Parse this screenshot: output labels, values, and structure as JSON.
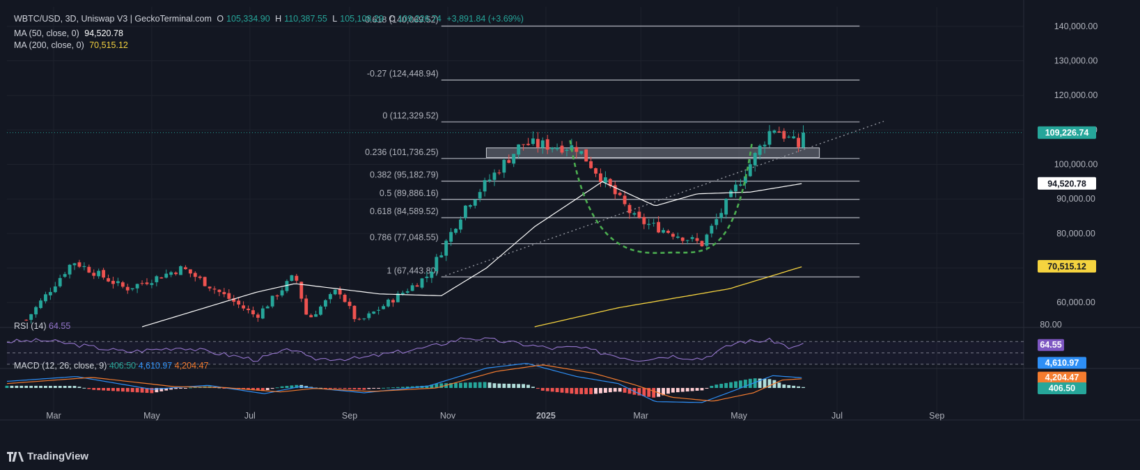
{
  "header": {
    "symbol": "WBTC/USD, 3D, Uniswap V3 | GeckoTerminal.com",
    "open_label": "O",
    "open": "105,334.90",
    "high_label": "H",
    "high": "110,387.55",
    "low_label": "L",
    "low": "105,108.29",
    "close_label": "C",
    "close": "109,226.74",
    "change": "+3,891.84 (+3.69%)",
    "ma50_label": "MA (50, close, 0)",
    "ma50_value": "94,520.78",
    "ma200_label": "MA (200, close, 0)",
    "ma200_value": "70,515.12"
  },
  "rsi_legend": {
    "label": "RSI (14)",
    "value": "64.55"
  },
  "macd_legend": {
    "label": "MACD (12, 26, close, 9)",
    "hist": "406.50",
    "macd": "4,610.97",
    "signal": "4,204.47"
  },
  "brand": "TradingView",
  "colors": {
    "background": "#131722",
    "up": "#26a69a",
    "down": "#ef5350",
    "ma50": "#ffffff",
    "ma200": "#f5d33f",
    "rsi": "#9575cd",
    "macd": "#2e8ff6",
    "signal": "#f57c2f",
    "fib": "#b2b5be",
    "pattern": "#4caf50"
  },
  "chart_data": [
    {
      "type": "candlestick",
      "title": "WBTC/USD, 3D, Uniswap V3 | GeckoTerminal.com",
      "y_ticks": [
        60000,
        70000,
        80000,
        90000,
        100000,
        110000,
        120000,
        130000,
        140000
      ],
      "ylim": [
        53000,
        144000
      ],
      "x_ticks": [
        "Mar",
        "May",
        "Jul",
        "Sep",
        "Nov",
        "2025",
        "Mar",
        "May",
        "Jul",
        "Sep"
      ],
      "x_tick_dates": [
        "2024-03-01",
        "2024-05-01",
        "2024-07-01",
        "2024-09-01",
        "2024-11-01",
        "2025-01-01",
        "2025-03-01",
        "2025-05-01",
        "2025-07-01",
        "2025-09-01"
      ],
      "xlim": [
        "2024-02-01",
        "2025-10-25"
      ],
      "price_anchors": [
        [
          "2024-02-13",
          55000
        ],
        [
          "2024-03-13",
          72000
        ],
        [
          "2024-04-15",
          64000
        ],
        [
          "2024-05-20",
          70000
        ],
        [
          "2024-07-05",
          56000
        ],
        [
          "2024-07-29",
          68000
        ],
        [
          "2024-08-06",
          55000
        ],
        [
          "2024-08-25",
          64000
        ],
        [
          "2024-09-06",
          54000
        ],
        [
          "2024-10-20",
          68000
        ],
        [
          "2024-11-12",
          88000
        ],
        [
          "2024-12-17",
          106000
        ],
        [
          "2025-01-20",
          105000
        ],
        [
          "2025-02-26",
          84000
        ],
        [
          "2025-04-08",
          77000
        ],
        [
          "2025-05-22",
          111000
        ],
        [
          "2025-06-07",
          105300
        ],
        [
          "2025-06-10",
          109226.74
        ]
      ],
      "last_price": 109226.74,
      "fib_levels": [
        {
          "label": "-0.618 (140,069.52)",
          "value": 140069.52
        },
        {
          "label": "-0.27 (124,448.94)",
          "value": 124448.94
        },
        {
          "label": "0 (112,329.52)",
          "value": 112329.52
        },
        {
          "label": "0.236 (101,736.25)",
          "value": 101736.25
        },
        {
          "label": "0.382 (95,182.79)",
          "value": 95182.79
        },
        {
          "label": "0.5 (89,886.16)",
          "value": 89886.16
        },
        {
          "label": "0.618 (84,589.52)",
          "value": 84589.52
        },
        {
          "label": "0.786 (77,048.55)",
          "value": 77048.55
        },
        {
          "label": "1 (67,443.80)",
          "value": 67443.8
        }
      ],
      "fib_span": [
        "2024-10-28",
        "2025-07-15"
      ],
      "resistance_zone": {
        "from": "2024-11-25",
        "to": "2025-06-20",
        "low": 102000,
        "high": 104800
      },
      "trendline": {
        "start": [
          "2024-10-28",
          67400
        ],
        "end": [
          "2025-07-30",
          112500
        ]
      },
      "cup_curve": {
        "start": [
          "2025-01-16",
          107000
        ],
        "bottom": [
          "2025-03-21",
          74500
        ],
        "end": [
          "2025-05-09",
          106000
        ]
      },
      "series": [
        {
          "name": "MA (50, close, 0)",
          "last": 94520.78,
          "anchors": [
            [
              "2024-04-25",
              53000
            ],
            [
              "2024-07-05",
              63000
            ],
            [
              "2024-07-29",
              65500
            ],
            [
              "2024-09-20",
              62500
            ],
            [
              "2024-10-28",
              62000
            ],
            [
              "2024-11-25",
              70000
            ],
            [
              "2024-12-25",
              82000
            ],
            [
              "2025-02-05",
              95000
            ],
            [
              "2025-03-10",
              88000
            ],
            [
              "2025-04-05",
              91500
            ],
            [
              "2025-05-08",
              92000
            ],
            [
              "2025-06-10",
              94520.78
            ]
          ]
        },
        {
          "name": "MA (200, close, 0)",
          "last": 70515.12,
          "anchors": [
            [
              "2024-12-25",
              53000
            ],
            [
              "2025-02-15",
              58500
            ],
            [
              "2025-04-25",
              64000
            ],
            [
              "2025-06-10",
              70515.12
            ]
          ]
        }
      ]
    },
    {
      "type": "line",
      "title": "RSI (14)",
      "y_ticks": [
        80
      ],
      "bands": [
        70,
        50,
        30
      ],
      "last": 64.55,
      "anchors": [
        [
          "2024-02-01",
          70
        ],
        [
          "2024-02-25",
          72
        ],
        [
          "2024-04-15",
          52
        ],
        [
          "2024-05-20",
          60
        ],
        [
          "2024-07-05",
          38
        ],
        [
          "2024-07-29",
          58
        ],
        [
          "2024-08-06",
          40
        ],
        [
          "2024-09-06",
          40
        ],
        [
          "2024-10-20",
          60
        ],
        [
          "2024-11-12",
          77
        ],
        [
          "2024-12-01",
          72
        ],
        [
          "2025-01-05",
          58
        ],
        [
          "2025-01-20",
          60
        ],
        [
          "2025-02-26",
          38
        ],
        [
          "2025-03-20",
          45
        ],
        [
          "2025-04-08",
          40
        ],
        [
          "2025-05-01",
          70
        ],
        [
          "2025-05-22",
          72
        ],
        [
          "2025-06-03",
          58
        ],
        [
          "2025-06-10",
          64.55
        ]
      ]
    },
    {
      "type": "line",
      "title": "MACD (12, 26, close, 9)",
      "series": [
        {
          "name": "MACD",
          "last": 4610.97,
          "anchors": [
            [
              "2024-02-01",
              3000
            ],
            [
              "2024-03-15",
              5200
            ],
            [
              "2024-05-01",
              -600
            ],
            [
              "2024-06-05",
              1200
            ],
            [
              "2024-07-10",
              -2600
            ],
            [
              "2024-08-01",
              600
            ],
            [
              "2024-09-10",
              -2200
            ],
            [
              "2024-10-20",
              900
            ],
            [
              "2024-11-25",
              9000
            ],
            [
              "2024-12-20",
              11200
            ],
            [
              "2025-01-20",
              5200
            ],
            [
              "2025-02-15",
              2000
            ],
            [
              "2025-03-10",
              -6200
            ],
            [
              "2025-04-08",
              -6600
            ],
            [
              "2025-04-25",
              -2000
            ],
            [
              "2025-05-22",
              5600
            ],
            [
              "2025-06-10",
              4610.97
            ]
          ]
        },
        {
          "name": "Signal",
          "last": 4204.47,
          "anchors": [
            [
              "2024-02-01",
              2000
            ],
            [
              "2024-03-25",
              4800
            ],
            [
              "2024-05-15",
              600
            ],
            [
              "2024-06-15",
              200
            ],
            [
              "2024-07-20",
              -1800
            ],
            [
              "2024-08-10",
              -200
            ],
            [
              "2024-09-15",
              -1600
            ],
            [
              "2024-10-25",
              0
            ],
            [
              "2024-12-01",
              7500
            ],
            [
              "2024-12-30",
              10500
            ],
            [
              "2025-01-30",
              6800
            ],
            [
              "2025-02-25",
              1500
            ],
            [
              "2025-03-20",
              -4200
            ],
            [
              "2025-04-15",
              -6000
            ],
            [
              "2025-05-10",
              -2200
            ],
            [
              "2025-05-28",
              3600
            ],
            [
              "2025-06-10",
              4204.47
            ]
          ]
        },
        {
          "name": "Histogram",
          "last": 406.5
        }
      ]
    }
  ]
}
